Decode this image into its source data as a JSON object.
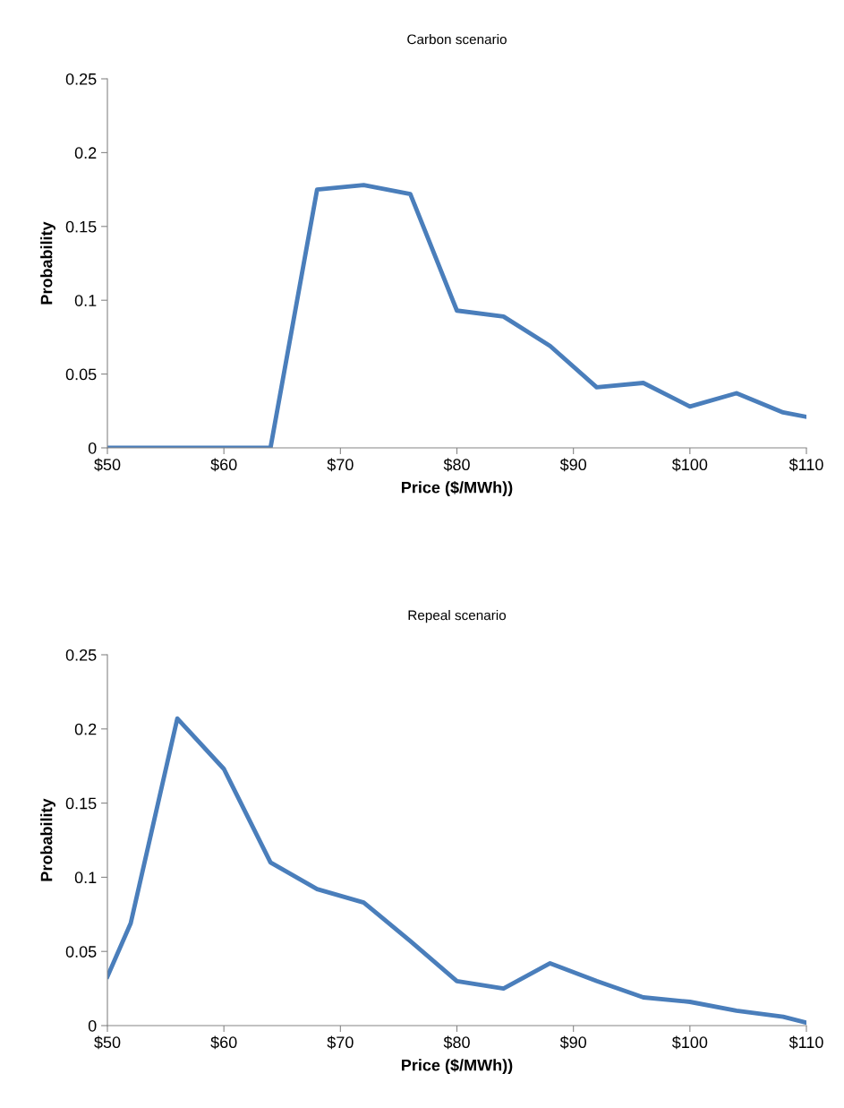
{
  "chart_data": [
    {
      "type": "line",
      "title": "Carbon scenario",
      "xlabel": "Price ($/MWh))",
      "ylabel": "Probability",
      "x": [
        50,
        52,
        56,
        60,
        64,
        68,
        72,
        76,
        80,
        84,
        88,
        92,
        96,
        100,
        104,
        108,
        110
      ],
      "series": [
        {
          "color": "#4a7ebb",
          "values": [
            0,
            0,
            0,
            0,
            0,
            0.175,
            0.178,
            0.172,
            0.093,
            0.089,
            0.069,
            0.041,
            0.044,
            0.028,
            0.037,
            0.024,
            0.021
          ]
        }
      ],
      "xlim": [
        50,
        110
      ],
      "ylim": [
        0,
        0.25
      ],
      "xticks": [
        {
          "value": 50,
          "label": "$50"
        },
        {
          "value": 60,
          "label": "$60"
        },
        {
          "value": 70,
          "label": "$70"
        },
        {
          "value": 80,
          "label": "$80"
        },
        {
          "value": 90,
          "label": "$90"
        },
        {
          "value": 100,
          "label": "$100"
        },
        {
          "value": 110,
          "label": "$110"
        }
      ],
      "yticks": [
        0,
        0.05,
        0.1,
        0.15,
        0.2,
        0.25
      ],
      "grid": false
    },
    {
      "type": "line",
      "title": "Repeal scenario",
      "xlabel": "Price ($/MWh))",
      "ylabel": "Probability",
      "x": [
        50,
        52,
        56,
        60,
        64,
        68,
        72,
        76,
        80,
        84,
        88,
        92,
        96,
        100,
        104,
        108,
        110
      ],
      "series": [
        {
          "color": "#4a7ebb",
          "values": [
            0.033,
            0.069,
            0.207,
            0.173,
            0.11,
            0.092,
            0.083,
            0.057,
            0.03,
            0.025,
            0.042,
            0.03,
            0.019,
            0.016,
            0.01,
            0.006,
            0.002
          ]
        }
      ],
      "xlim": [
        50,
        110
      ],
      "ylim": [
        0,
        0.25
      ],
      "xticks": [
        {
          "value": 50,
          "label": "$50"
        },
        {
          "value": 60,
          "label": "$60"
        },
        {
          "value": 70,
          "label": "$70"
        },
        {
          "value": 80,
          "label": "$80"
        },
        {
          "value": 90,
          "label": "$90"
        },
        {
          "value": 100,
          "label": "$100"
        },
        {
          "value": 110,
          "label": "$110"
        }
      ],
      "yticks": [
        0,
        0.05,
        0.1,
        0.15,
        0.2,
        0.25
      ],
      "grid": false
    }
  ]
}
